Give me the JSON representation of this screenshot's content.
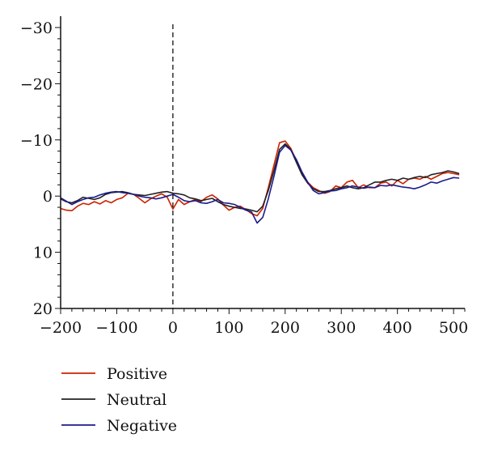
{
  "chart_data": {
    "type": "line",
    "title": "",
    "xlabel": "",
    "ylabel": "",
    "xlim": [
      -200,
      520
    ],
    "ylim": [
      20,
      -30
    ],
    "y_axis_inverted": true,
    "grid": false,
    "legend_position": "bottom-left",
    "x_ticks": [
      -200,
      -100,
      0,
      100,
      200,
      300,
      400,
      500
    ],
    "x_tick_labels": [
      "−200",
      "−100",
      "0",
      "100",
      "200",
      "300",
      "400",
      "500"
    ],
    "y_ticks": [
      -30,
      -20,
      -10,
      0,
      10,
      20
    ],
    "y_tick_labels": [
      "−30",
      "−20",
      "−10",
      "0",
      "10",
      "20"
    ],
    "annotations": [
      {
        "type": "vertical-dashed-line",
        "x": 0
      }
    ],
    "series": [
      {
        "name": "Positive",
        "color": "#cc2200",
        "x": [
          -200,
          -190,
          -180,
          -170,
          -160,
          -150,
          -140,
          -130,
          -120,
          -110,
          -100,
          -90,
          -80,
          -70,
          -60,
          -50,
          -40,
          -30,
          -20,
          -10,
          0,
          10,
          20,
          30,
          40,
          50,
          60,
          70,
          80,
          90,
          100,
          110,
          120,
          130,
          140,
          150,
          160,
          170,
          180,
          190,
          200,
          210,
          220,
          230,
          240,
          250,
          260,
          270,
          280,
          290,
          300,
          310,
          320,
          330,
          340,
          350,
          360,
          370,
          380,
          390,
          400,
          410,
          420,
          430,
          440,
          450,
          460,
          470,
          480,
          490,
          500,
          510
        ],
        "values": [
          2.2,
          2.5,
          2.6,
          1.8,
          1.3,
          1.5,
          1.0,
          1.4,
          0.8,
          1.2,
          0.6,
          0.3,
          -0.5,
          -0.3,
          0.4,
          1.2,
          0.5,
          0.0,
          -0.4,
          0.2,
          2.3,
          0.6,
          1.5,
          1.0,
          0.6,
          1.0,
          0.2,
          -0.2,
          0.5,
          1.6,
          2.5,
          2.0,
          1.8,
          2.4,
          3.1,
          3.5,
          2.2,
          -1.5,
          -5.5,
          -9.5,
          -9.8,
          -8.5,
          -6.3,
          -4.0,
          -2.5,
          -1.5,
          -1.0,
          -0.5,
          -0.8,
          -1.8,
          -1.5,
          -2.5,
          -2.8,
          -1.5,
          -2.0,
          -1.5,
          -1.5,
          -2.3,
          -2.5,
          -1.8,
          -2.8,
          -2.2,
          -3.0,
          -3.2,
          -3.0,
          -3.5,
          -3.0,
          -3.5,
          -4.0,
          -4.2,
          -4.0,
          -3.8
        ]
      },
      {
        "name": "Neutral",
        "color": "#222222",
        "x": [
          -200,
          -190,
          -180,
          -170,
          -160,
          -150,
          -140,
          -130,
          -120,
          -110,
          -100,
          -90,
          -80,
          -70,
          -60,
          -50,
          -40,
          -30,
          -20,
          -10,
          0,
          10,
          20,
          30,
          40,
          50,
          60,
          70,
          80,
          90,
          100,
          110,
          120,
          130,
          140,
          150,
          160,
          170,
          180,
          190,
          200,
          210,
          220,
          230,
          240,
          250,
          260,
          270,
          280,
          290,
          300,
          310,
          320,
          330,
          340,
          350,
          360,
          370,
          380,
          390,
          400,
          410,
          420,
          430,
          440,
          450,
          460,
          470,
          480,
          490,
          500,
          510
        ],
        "values": [
          0.5,
          1.0,
          1.2,
          0.8,
          0.2,
          0.4,
          0.6,
          0.3,
          -0.3,
          -0.6,
          -0.7,
          -0.8,
          -0.6,
          -0.3,
          -0.2,
          -0.1,
          -0.3,
          -0.5,
          -0.7,
          -0.8,
          -0.5,
          -0.4,
          -0.2,
          0.3,
          0.5,
          0.8,
          0.6,
          0.4,
          1.0,
          1.5,
          1.8,
          2.0,
          2.2,
          2.3,
          2.5,
          2.8,
          1.8,
          -1.0,
          -4.5,
          -8.3,
          -9.3,
          -8.3,
          -6.0,
          -3.8,
          -2.3,
          -1.3,
          -0.8,
          -0.8,
          -1.0,
          -1.3,
          -1.5,
          -1.8,
          -1.5,
          -1.3,
          -1.5,
          -2.0,
          -2.5,
          -2.5,
          -2.8,
          -3.0,
          -2.8,
          -3.2,
          -3.0,
          -3.3,
          -3.5,
          -3.3,
          -3.8,
          -4.0,
          -4.2,
          -4.5,
          -4.3,
          -4.0
        ]
      },
      {
        "name": "Negative",
        "color": "#1c1c8c",
        "x": [
          -200,
          -190,
          -180,
          -170,
          -160,
          -150,
          -140,
          -130,
          -120,
          -110,
          -100,
          -90,
          -80,
          -70,
          -60,
          -50,
          -40,
          -30,
          -20,
          -10,
          0,
          10,
          20,
          30,
          40,
          50,
          60,
          70,
          80,
          90,
          100,
          110,
          120,
          130,
          140,
          150,
          160,
          170,
          180,
          190,
          200,
          210,
          220,
          230,
          240,
          250,
          260,
          270,
          280,
          290,
          300,
          310,
          320,
          330,
          340,
          350,
          360,
          370,
          380,
          390,
          400,
          410,
          420,
          430,
          440,
          450,
          460,
          470,
          480,
          490,
          500,
          510
        ],
        "values": [
          0.3,
          0.9,
          1.5,
          1.0,
          0.6,
          0.3,
          0.2,
          -0.2,
          -0.5,
          -0.7,
          -0.8,
          -0.6,
          -0.5,
          -0.3,
          0.0,
          0.2,
          0.3,
          0.5,
          0.3,
          0.0,
          -0.3,
          0.2,
          0.8,
          1.0,
          0.8,
          1.2,
          1.3,
          1.0,
          0.6,
          1.2,
          1.3,
          1.5,
          2.0,
          2.5,
          2.8,
          4.8,
          3.8,
          0.5,
          -3.5,
          -7.8,
          -9.0,
          -8.2,
          -6.5,
          -4.3,
          -2.5,
          -1.0,
          -0.4,
          -0.6,
          -0.9,
          -1.0,
          -1.3,
          -1.5,
          -1.8,
          -1.6,
          -1.4,
          -1.6,
          -1.5,
          -1.9,
          -1.8,
          -2.0,
          -1.8,
          -1.6,
          -1.5,
          -1.3,
          -1.6,
          -2.0,
          -2.5,
          -2.3,
          -2.7,
          -3.0,
          -3.3,
          -3.2
        ]
      }
    ]
  }
}
